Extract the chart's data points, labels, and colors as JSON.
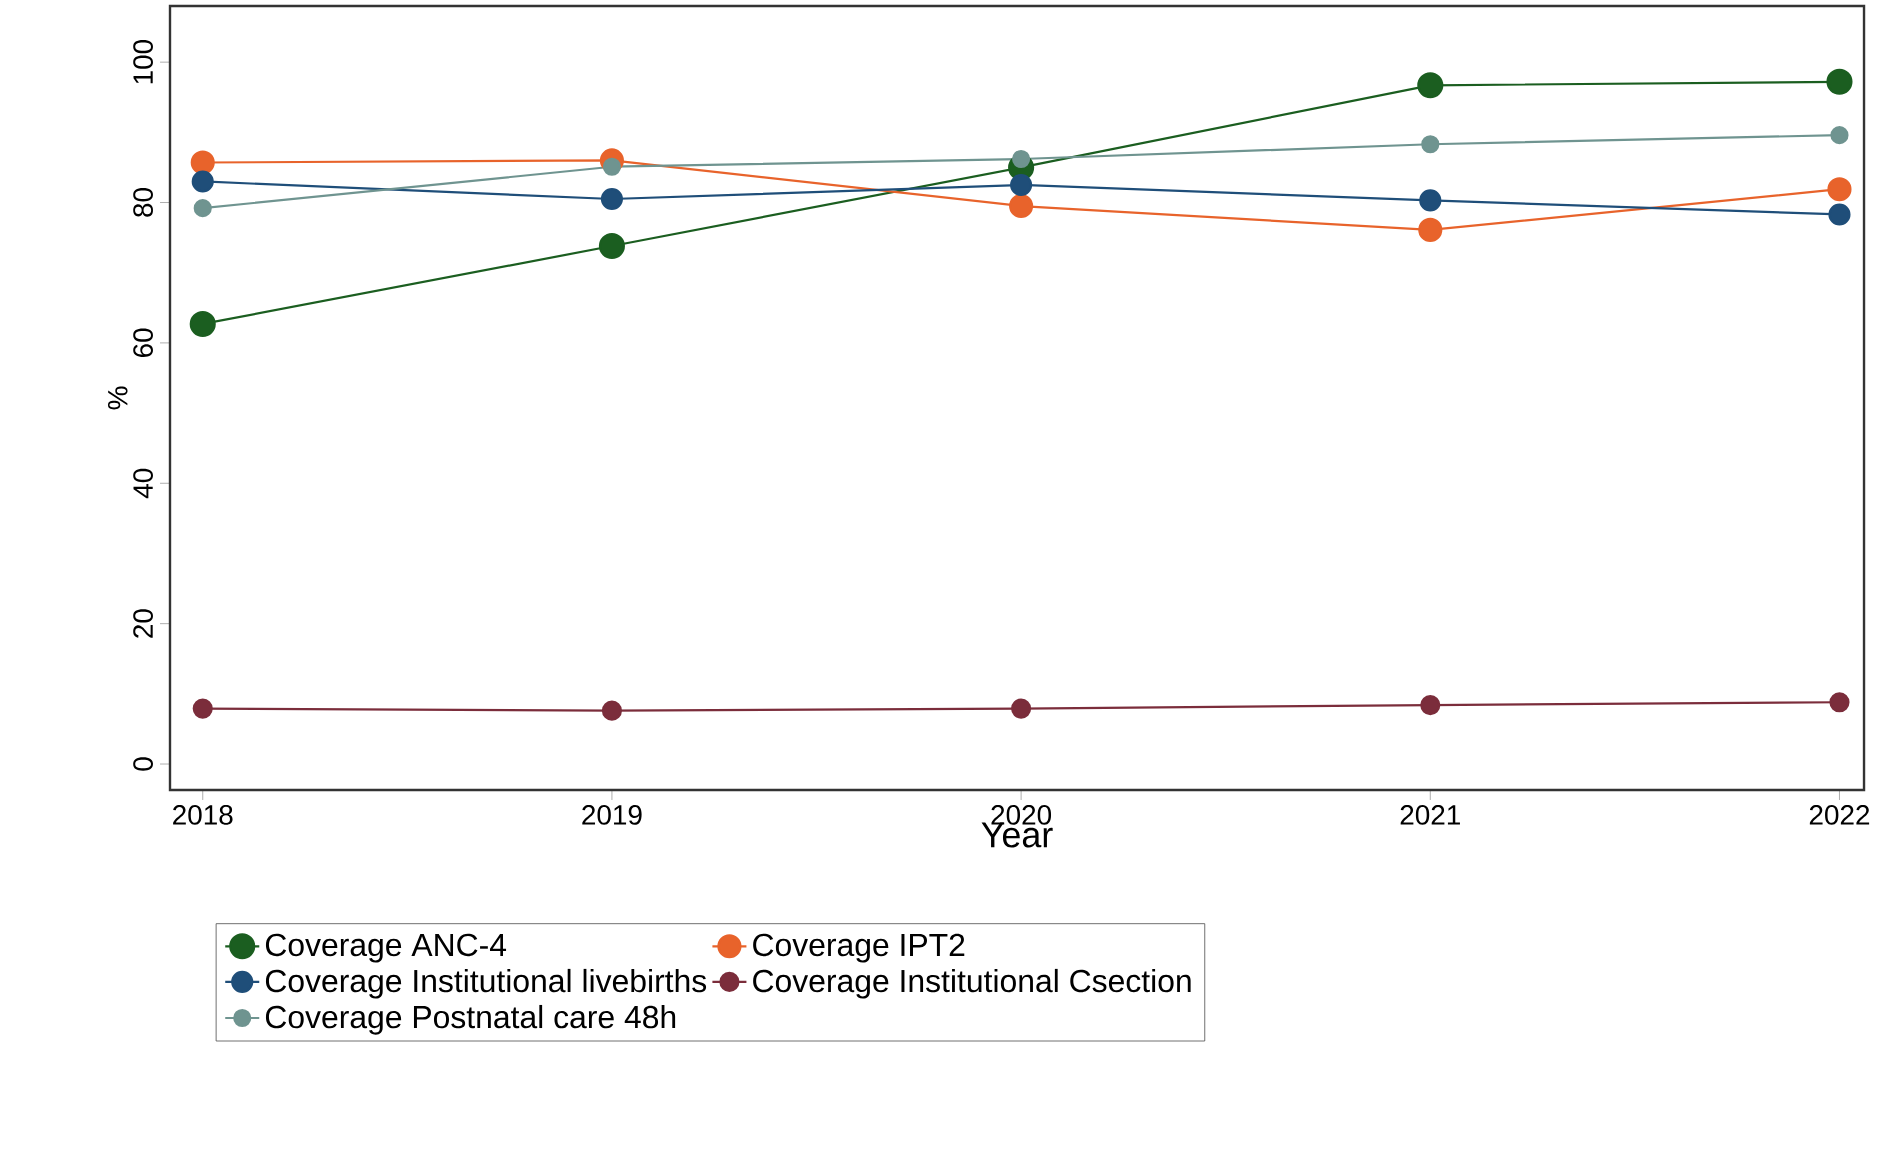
{
  "chart_data": {
    "type": "line",
    "xlabel": "Year",
    "ylabel": "%",
    "x": [
      2018,
      2019,
      2020,
      2021,
      2022
    ],
    "xlim": [
      2017.92,
      2022.06
    ],
    "xticks": [
      2018,
      2019,
      2020,
      2021,
      2022
    ],
    "ylim": [
      -3.7,
      108
    ],
    "yticks": [
      0,
      20,
      40,
      60,
      80,
      100
    ],
    "marker": "circle",
    "line_style": "solid",
    "grid": false,
    "legend": "bottom",
    "series": [
      {
        "name": "Coverage ANC-4",
        "color": "#1b5e20",
        "values": [
          62.7,
          73.8,
          85.0,
          96.7,
          97.2
        ]
      },
      {
        "name": "Coverage IPT2",
        "color": "#e8632b",
        "values": [
          85.7,
          86.0,
          79.5,
          76.1,
          81.9
        ]
      },
      {
        "name": "Coverage Institutional livebirths",
        "color": "#1f4e79",
        "values": [
          83.0,
          80.5,
          82.5,
          80.3,
          78.3
        ]
      },
      {
        "name": "Coverage Institutional Csection",
        "color": "#7b2d3b",
        "values": [
          7.9,
          7.6,
          7.9,
          8.4,
          8.8
        ]
      },
      {
        "name": "Coverage Postnatal care 48h",
        "color": "#6f9490",
        "values": [
          79.2,
          85.1,
          86.2,
          88.3,
          89.6
        ]
      }
    ]
  }
}
